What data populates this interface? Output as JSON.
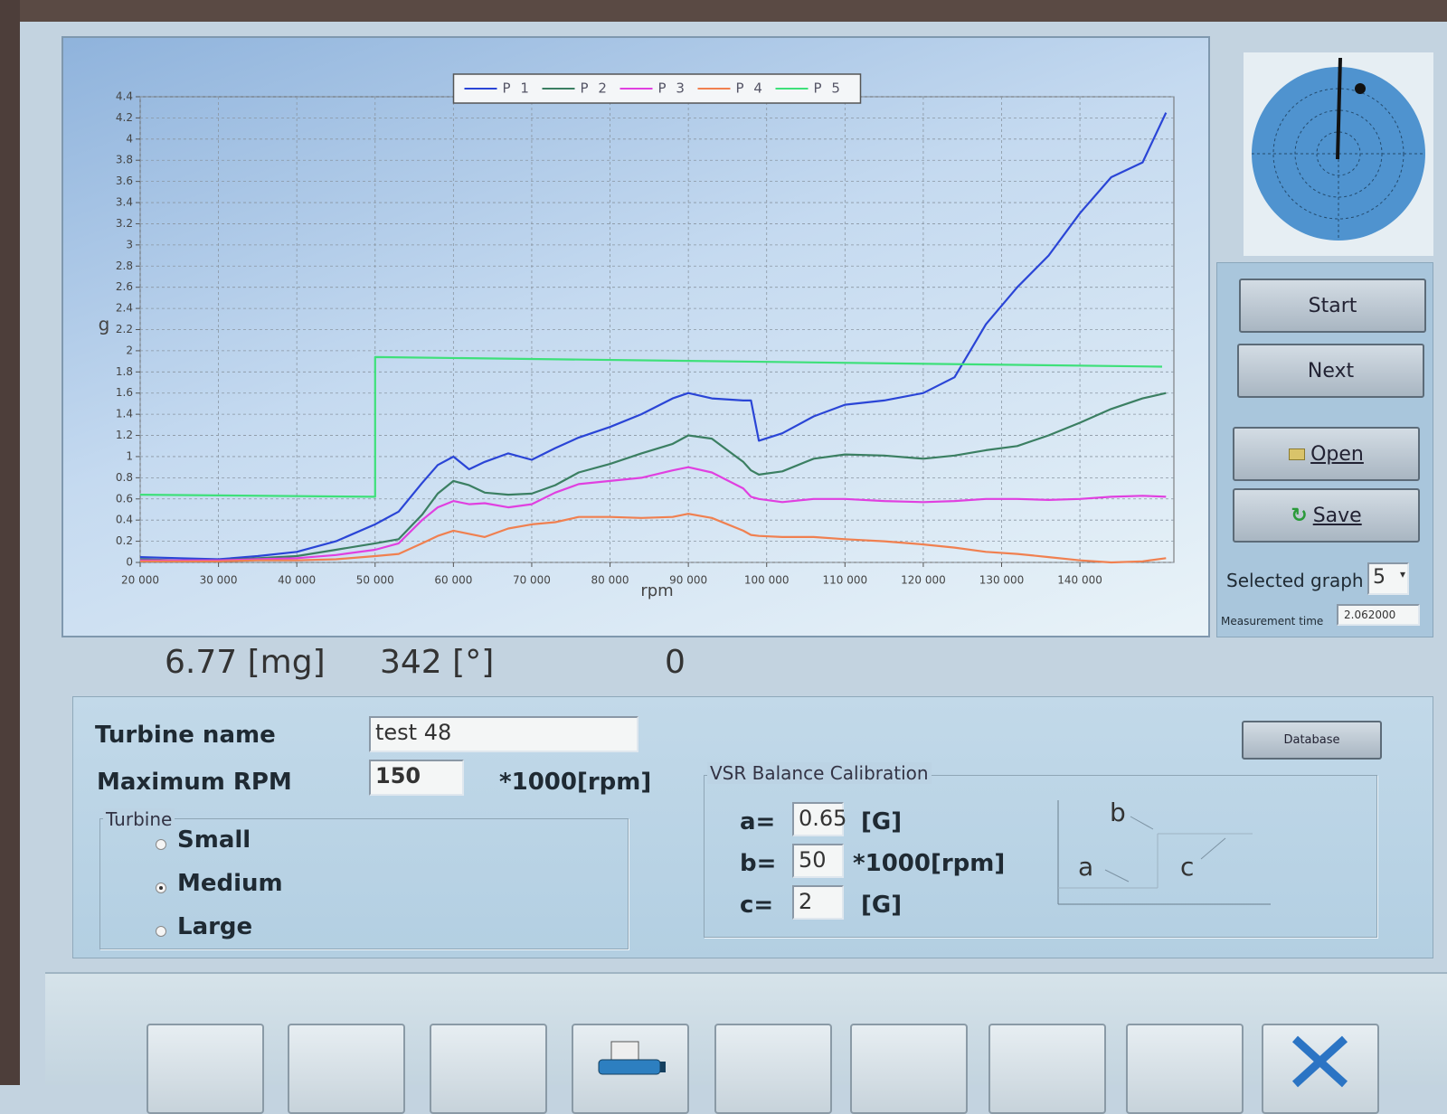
{
  "chart_data": {
    "type": "line",
    "xlabel": "rpm",
    "ylabel": "g",
    "xlim": [
      20000,
      152000
    ],
    "ylim": [
      0,
      4.4
    ],
    "xticks": [
      {
        "value": 20000,
        "label": "20 000"
      },
      {
        "value": 30000,
        "label": "30 000"
      },
      {
        "value": 40000,
        "label": "40 000"
      },
      {
        "value": 50000,
        "label": "50 000"
      },
      {
        "value": 60000,
        "label": "60 000"
      },
      {
        "value": 70000,
        "label": "70 000"
      },
      {
        "value": 80000,
        "label": "80 000"
      },
      {
        "value": 90000,
        "label": "90 000"
      },
      {
        "value": 100000,
        "label": "100 000"
      },
      {
        "value": 110000,
        "label": "110 000"
      },
      {
        "value": 120000,
        "label": "120 000"
      },
      {
        "value": 130000,
        "label": "130 000"
      },
      {
        "value": 140000,
        "label": "140 000"
      }
    ],
    "yticks": [
      0,
      0.2,
      0.4,
      0.6,
      0.8,
      1,
      1.2,
      1.4,
      1.6,
      1.8,
      2,
      2.2,
      2.4,
      2.6,
      2.8,
      3,
      3.2,
      3.4,
      3.6,
      3.8,
      4,
      4.2,
      4.4
    ],
    "grid": true,
    "legend_position": "top",
    "x": [
      20000,
      25000,
      30000,
      35000,
      40000,
      45000,
      50000,
      53000,
      56000,
      58000,
      60000,
      62000,
      64000,
      67000,
      70000,
      73000,
      76000,
      80000,
      84000,
      88000,
      90000,
      93000,
      97000,
      98000,
      99000,
      102000,
      106000,
      110000,
      115000,
      120000,
      124000,
      128000,
      132000,
      136000,
      140000,
      144000,
      148000,
      151000
    ],
    "series": [
      {
        "name": "P 1",
        "color": "#2a45d6",
        "values": [
          0.05,
          0.04,
          0.03,
          0.06,
          0.1,
          0.2,
          0.36,
          0.48,
          0.75,
          0.92,
          1.0,
          0.88,
          0.95,
          1.03,
          0.97,
          1.08,
          1.18,
          1.28,
          1.4,
          1.55,
          1.6,
          1.55,
          1.53,
          1.53,
          1.15,
          1.22,
          1.38,
          1.49,
          1.53,
          1.6,
          1.75,
          2.25,
          2.6,
          2.9,
          3.3,
          3.64,
          3.78,
          4.25
        ]
      },
      {
        "name": "P 2",
        "color": "#3b7f62",
        "values": [
          0.03,
          0.02,
          0.02,
          0.04,
          0.06,
          0.12,
          0.18,
          0.22,
          0.45,
          0.65,
          0.77,
          0.73,
          0.66,
          0.64,
          0.65,
          0.73,
          0.85,
          0.93,
          1.03,
          1.12,
          1.2,
          1.17,
          0.95,
          0.87,
          0.83,
          0.86,
          0.98,
          1.02,
          1.01,
          0.98,
          1.01,
          1.06,
          1.1,
          1.2,
          1.32,
          1.45,
          1.55,
          1.6
        ]
      },
      {
        "name": "P 3",
        "color": "#e040e0",
        "values": [
          0.02,
          0.02,
          0.02,
          0.03,
          0.04,
          0.07,
          0.12,
          0.18,
          0.4,
          0.52,
          0.58,
          0.55,
          0.56,
          0.52,
          0.55,
          0.66,
          0.74,
          0.77,
          0.8,
          0.87,
          0.9,
          0.85,
          0.7,
          0.62,
          0.6,
          0.57,
          0.6,
          0.6,
          0.58,
          0.57,
          0.58,
          0.6,
          0.6,
          0.59,
          0.6,
          0.62,
          0.63,
          0.62
        ]
      },
      {
        "name": "P 4",
        "color": "#f08050",
        "values": [
          0.01,
          0.01,
          0.01,
          0.02,
          0.02,
          0.03,
          0.06,
          0.08,
          0.18,
          0.25,
          0.3,
          0.27,
          0.24,
          0.32,
          0.36,
          0.38,
          0.43,
          0.43,
          0.42,
          0.43,
          0.46,
          0.42,
          0.3,
          0.26,
          0.25,
          0.24,
          0.24,
          0.22,
          0.2,
          0.17,
          0.14,
          0.1,
          0.08,
          0.05,
          0.02,
          0.0,
          0.01,
          0.04
        ]
      },
      {
        "name": "P 5",
        "color": "#3ee07a",
        "x": [
          20000,
          50000,
          50000,
          150500
        ],
        "values": [
          0.64,
          0.62,
          1.94,
          1.85
        ]
      }
    ]
  },
  "readout": {
    "mass": "6.77 [mg]",
    "angle": "342 [°]",
    "status": "0"
  },
  "buttons": {
    "start": "Start",
    "next": "Next",
    "open": "Open",
    "save": "Save",
    "database": "Database"
  },
  "selected_graph": {
    "label": "Selected graph",
    "value": "5"
  },
  "measurement_time": {
    "label": "Measurement time",
    "value": "2.062000"
  },
  "turbine_form": {
    "name_label": "Turbine name",
    "name_value": "test 48",
    "max_rpm_label": "Maximum RPM",
    "max_rpm_value": "150",
    "max_rpm_unit": "*1000[rpm]",
    "group_label": "Turbine",
    "options": [
      "Small",
      "Medium",
      "Large"
    ],
    "selected_index": 1
  },
  "calibration": {
    "title": "VSR Balance Calibration",
    "rows": [
      {
        "label": "a=",
        "value": "0.65",
        "unit": "[G]"
      },
      {
        "label": "b=",
        "value": "50",
        "unit": "*1000[rpm]"
      },
      {
        "label": "c=",
        "value": "2",
        "unit": "[G]"
      }
    ],
    "diagram_labels": [
      "b",
      "a",
      "c"
    ]
  }
}
